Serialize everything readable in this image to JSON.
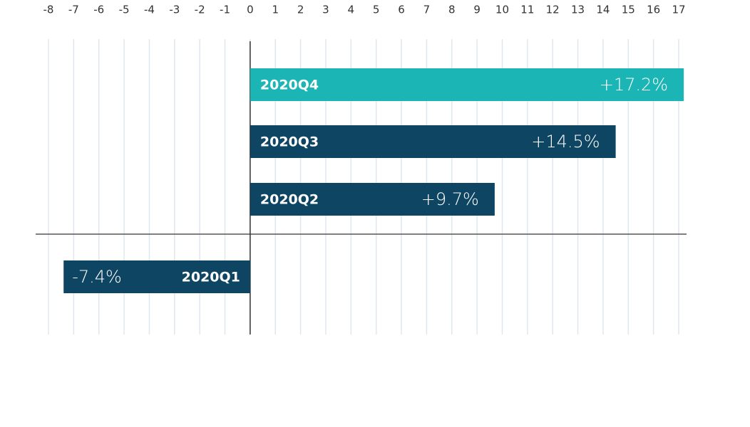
{
  "chart_data": {
    "type": "hbar",
    "categories": [
      "2020Q4",
      "2020Q3",
      "2020Q2",
      "2020Q1"
    ],
    "values": [
      17.2,
      14.5,
      9.7,
      -7.4
    ],
    "value_labels": [
      "+17.2%",
      "+14.5%",
      "+9.7%",
      "-7.4%"
    ],
    "colors": [
      "#1bb5b5",
      "#0d4563",
      "#0d4563",
      "#0d4563"
    ],
    "xlim": [
      -8,
      17
    ],
    "xticks": [
      -8,
      -7,
      -6,
      -5,
      -4,
      -3,
      -2,
      -1,
      0,
      1,
      2,
      3,
      4,
      5,
      6,
      7,
      8,
      9,
      10,
      11,
      12,
      13,
      14,
      15,
      16,
      17
    ],
    "grid": true
  }
}
